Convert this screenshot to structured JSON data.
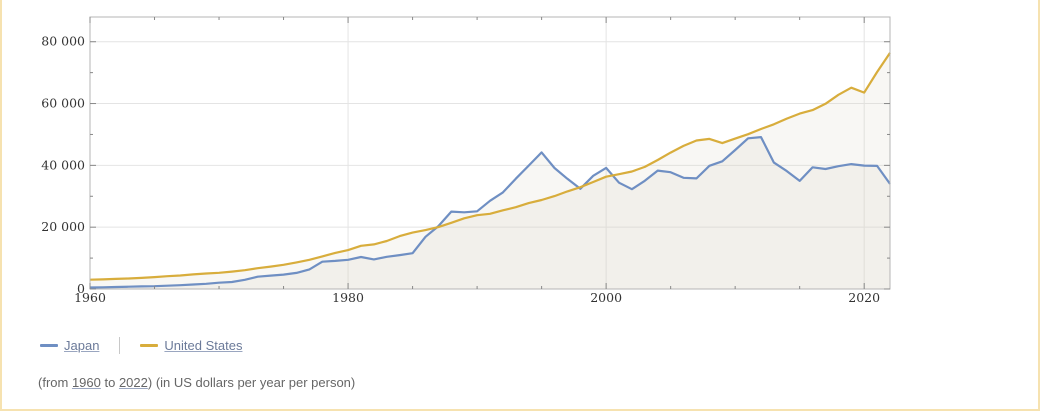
{
  "chart_data": {
    "type": "line",
    "x_ticks": [
      1960,
      1980,
      2000,
      2020
    ],
    "y_ticks": [
      0,
      20000,
      40000,
      60000,
      80000
    ],
    "y_tick_labels": [
      "0",
      "20 000",
      "40 000",
      "60 000",
      "80 000"
    ],
    "xlim": [
      1960,
      2022
    ],
    "ylim": [
      0,
      88000
    ],
    "grid": true,
    "series": [
      {
        "name": "Japan",
        "color": "#6f8fc3",
        "x": [
          1960,
          1961,
          1962,
          1963,
          1964,
          1965,
          1966,
          1967,
          1968,
          1969,
          1970,
          1971,
          1972,
          1973,
          1974,
          1975,
          1976,
          1977,
          1978,
          1979,
          1980,
          1981,
          1982,
          1983,
          1984,
          1985,
          1986,
          1987,
          1988,
          1989,
          1990,
          1991,
          1992,
          1993,
          1994,
          1995,
          1996,
          1997,
          1998,
          1999,
          2000,
          2001,
          2002,
          2003,
          2004,
          2005,
          2006,
          2007,
          2008,
          2009,
          2010,
          2011,
          2012,
          2013,
          2014,
          2015,
          2016,
          2017,
          2018,
          2019,
          2020,
          2021,
          2022
        ],
        "values": [
          480,
          560,
          640,
          730,
          840,
          920,
          1060,
          1230,
          1450,
          1670,
          2040,
          2270,
          2970,
          3990,
          4350,
          4660,
          5200,
          6330,
          8820,
          9100,
          9460,
          10360,
          9580,
          10430,
          10980,
          11580,
          16880,
          20350,
          25050,
          24820,
          25140,
          28540,
          31240,
          35680,
          39930,
          44200,
          39150,
          35640,
          32420,
          36610,
          39170,
          34400,
          32290,
          35000,
          38300,
          37800,
          35990,
          35780,
          39870,
          41310,
          44970,
          48760,
          49140,
          40900,
          38160,
          34960,
          39370,
          38830,
          39730,
          40420,
          39920,
          39830,
          34000
        ]
      },
      {
        "name": "United States",
        "color": "#d8ad3c",
        "x": [
          1960,
          1961,
          1962,
          1963,
          1964,
          1965,
          1966,
          1967,
          1968,
          1969,
          1970,
          1971,
          1972,
          1973,
          1974,
          1975,
          1976,
          1977,
          1978,
          1979,
          1980,
          1981,
          1982,
          1983,
          1984,
          1985,
          1986,
          1987,
          1988,
          1989,
          1990,
          1991,
          1992,
          1993,
          1994,
          1995,
          1996,
          1997,
          1998,
          1999,
          2000,
          2001,
          2002,
          2003,
          2004,
          2005,
          2006,
          2007,
          2008,
          2009,
          2010,
          2011,
          2012,
          2013,
          2014,
          2015,
          2016,
          2017,
          2018,
          2019,
          2020,
          2021,
          2022
        ],
        "values": [
          3010,
          3120,
          3270,
          3410,
          3600,
          3840,
          4150,
          4360,
          4730,
          5020,
          5230,
          5640,
          6090,
          6730,
          7240,
          7820,
          8610,
          9450,
          10560,
          11670,
          12580,
          13990,
          14430,
          15540,
          17120,
          18240,
          19070,
          20040,
          21420,
          22860,
          23890,
          24340,
          25470,
          26460,
          27780,
          28780,
          30070,
          31570,
          32950,
          34620,
          36330,
          37130,
          38020,
          39490,
          41730,
          44120,
          46300,
          48050,
          48570,
          47190,
          48650,
          50070,
          51780,
          53290,
          55120,
          56760,
          57870,
          59910,
          62820,
          65120,
          63530,
          70220,
          76400
        ]
      }
    ]
  },
  "legend": {
    "items": [
      {
        "label": "Japan",
        "color": "#6f8fc3"
      },
      {
        "label": "United States",
        "color": "#d8ad3c"
      }
    ]
  },
  "note": {
    "prefix": "(from ",
    "from_year": "1960",
    "middle": " to ",
    "to_year": "2022",
    "suffix": ")   (in US dollars per year per person)"
  }
}
